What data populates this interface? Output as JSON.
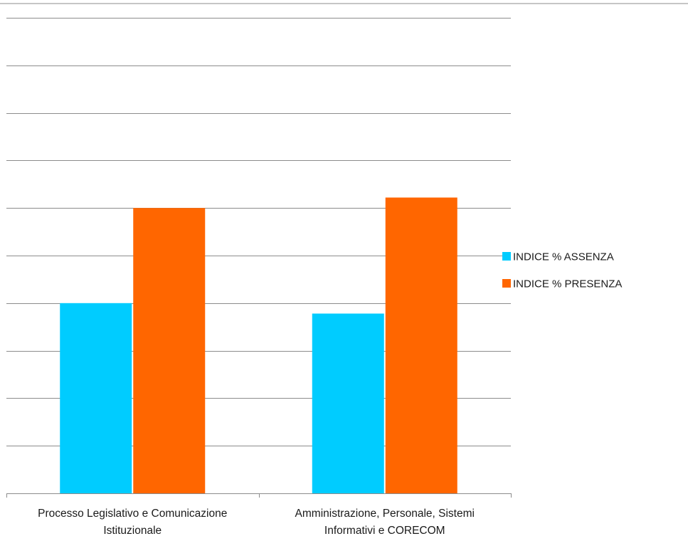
{
  "chart_data": {
    "type": "bar",
    "categories": [
      [
        "Processo Legislativo e Comunicazione",
        "Istituzionale"
      ],
      [
        "Amministrazione, Personale, Sistemi",
        "Informativi e CORECOM"
      ]
    ],
    "series": [
      {
        "name": "INDICE % ASSENZA",
        "color": "#00CCFF",
        "values": [
          40.0,
          37.8
        ]
      },
      {
        "name": "INDICE % PRESENZA",
        "color": "#FF6600",
        "values": [
          60.0,
          62.2
        ]
      }
    ],
    "ylim": [
      0,
      100
    ],
    "y_gridlines": 10,
    "y_tick_labels_shown": false,
    "grid": true,
    "legend": "right"
  }
}
